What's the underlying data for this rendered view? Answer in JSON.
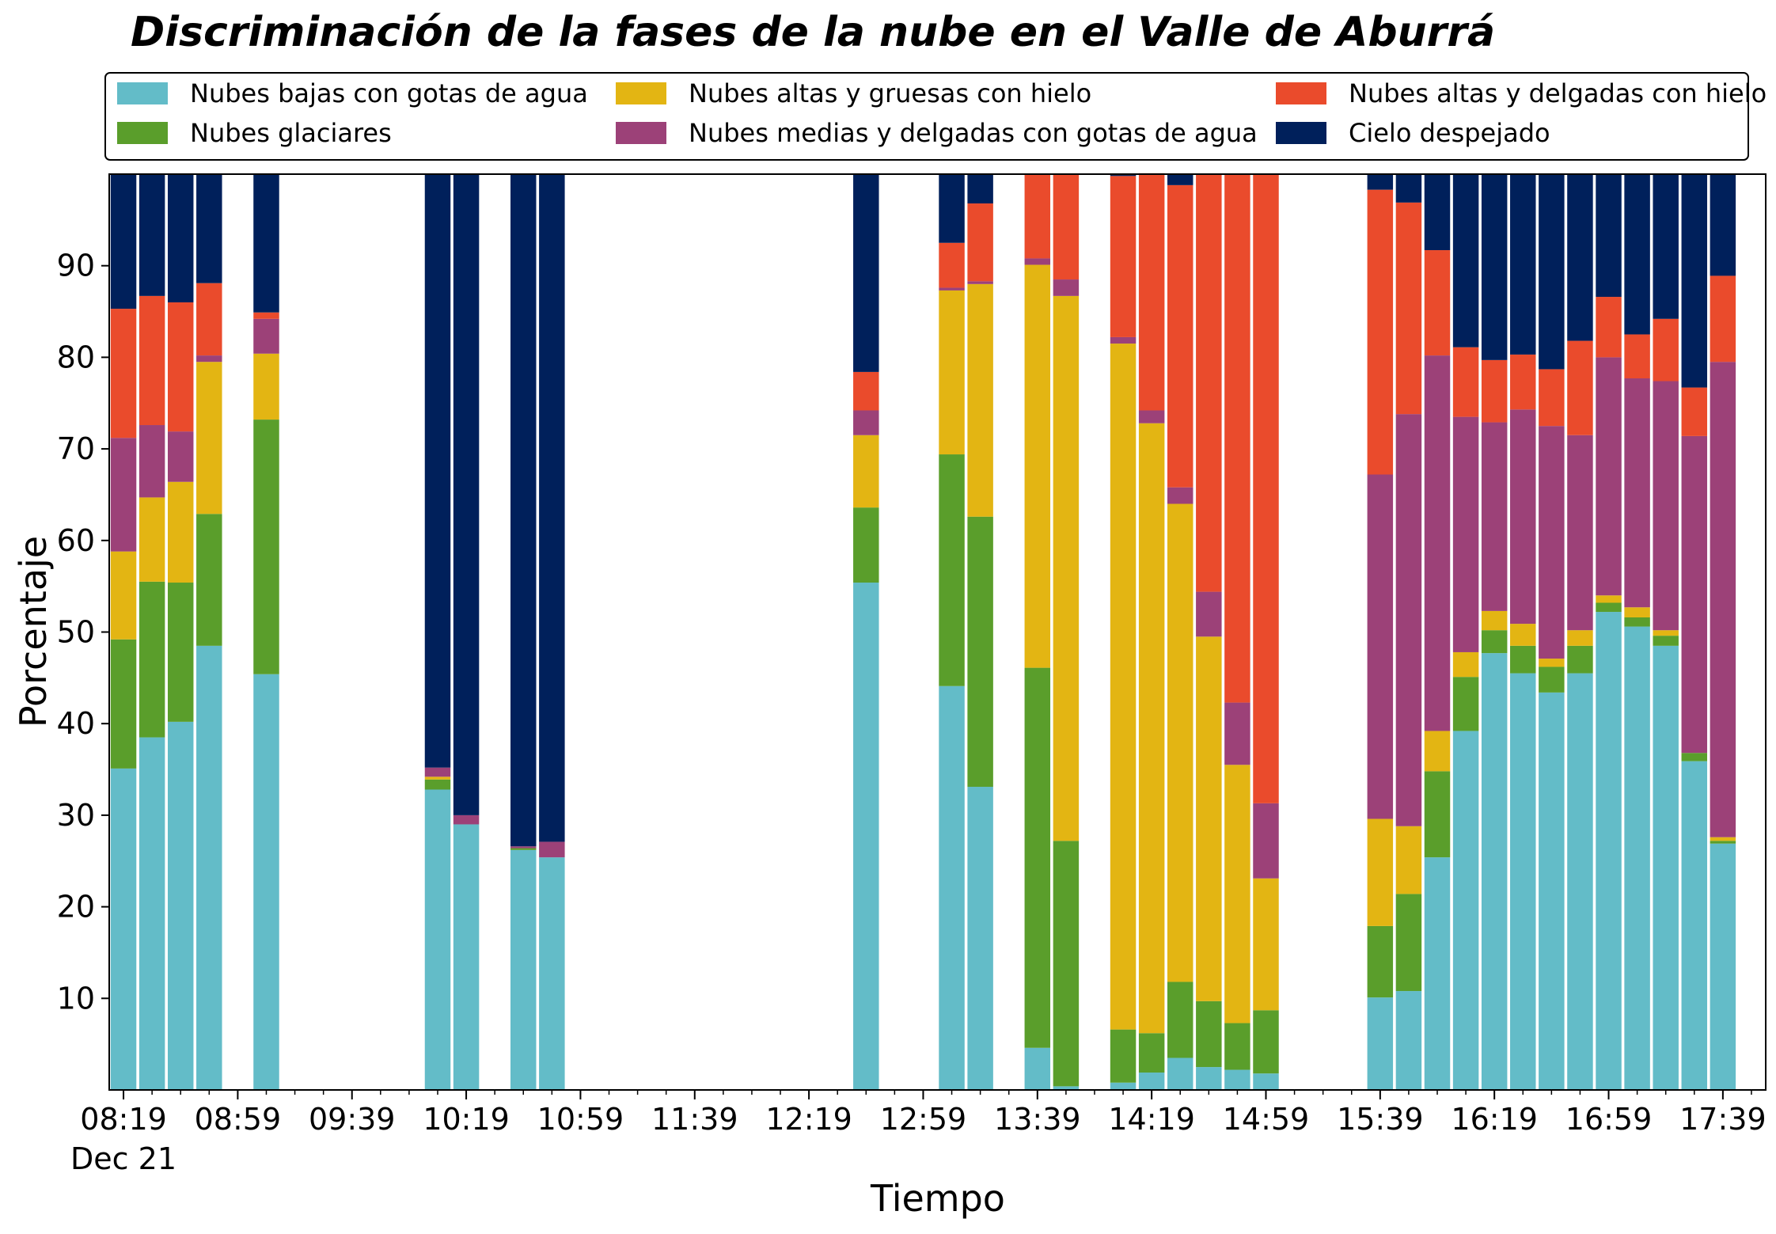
{
  "chart_data": {
    "type": "bar",
    "stacked": true,
    "title": "Discriminación de la fases de la nube en el Valle de Aburrá",
    "xlabel": "Tiempo",
    "ylabel": "Porcentaje",
    "ylim": [
      0,
      100
    ],
    "yticks": [
      10,
      20,
      30,
      40,
      50,
      60,
      70,
      80,
      90
    ],
    "x_start": "08:14",
    "x_end": "17:54",
    "xticks": [
      "08:19",
      "08:59",
      "09:39",
      "10:19",
      "10:59",
      "11:39",
      "12:19",
      "12:59",
      "13:39",
      "14:19",
      "14:59",
      "15:39",
      "16:19",
      "16:59",
      "17:39"
    ],
    "xtick_date": "Dec 21",
    "legend_position": "top",
    "series": [
      {
        "name": "Nubes bajas con gotas de agua",
        "color": "#63bcc8"
      },
      {
        "name": "Nubes glaciares",
        "color": "#5a9e2b"
      },
      {
        "name": "Nubes altas y gruesas con hielo",
        "color": "#e3b513"
      },
      {
        "name": "Nubes medias y delgadas con gotas de agua",
        "color": "#9c4178"
      },
      {
        "name": "Nubes altas y delgadas con hielo",
        "color": "#ea4b2c"
      },
      {
        "name": "Cielo despejado",
        "color": "#00205b"
      }
    ],
    "bars": [
      {
        "time": "08:19",
        "values": [
          35.1,
          14.1,
          9.6,
          12.4,
          14.1,
          14.7
        ]
      },
      {
        "time": "08:29",
        "values": [
          38.5,
          17.0,
          9.2,
          7.9,
          14.1,
          13.3
        ]
      },
      {
        "time": "08:39",
        "values": [
          40.2,
          15.2,
          11.0,
          5.5,
          14.1,
          14.0
        ]
      },
      {
        "time": "08:49",
        "values": [
          48.5,
          14.4,
          16.6,
          0.7,
          7.9,
          11.9
        ]
      },
      {
        "time": "09:09",
        "values": [
          45.4,
          27.8,
          7.2,
          3.8,
          0.7,
          15.1
        ]
      },
      {
        "time": "10:09",
        "values": [
          32.8,
          1.1,
          0.3,
          1.0,
          0.0,
          64.8
        ]
      },
      {
        "time": "10:19",
        "values": [
          29.0,
          0.0,
          0.0,
          1.0,
          0.0,
          70.0
        ]
      },
      {
        "time": "10:39",
        "values": [
          26.2,
          0.2,
          0.0,
          0.2,
          0.0,
          73.4
        ]
      },
      {
        "time": "10:49",
        "values": [
          25.4,
          0.0,
          0.0,
          1.7,
          0.0,
          72.9
        ]
      },
      {
        "time": "12:39",
        "values": [
          55.4,
          8.2,
          7.9,
          2.7,
          4.2,
          21.6
        ]
      },
      {
        "time": "13:09",
        "values": [
          44.1,
          25.3,
          17.9,
          0.3,
          4.9,
          7.5
        ]
      },
      {
        "time": "13:19",
        "values": [
          33.1,
          29.5,
          25.4,
          0.3,
          8.5,
          3.2
        ]
      },
      {
        "time": "13:39",
        "values": [
          4.6,
          41.5,
          44.0,
          0.7,
          9.2,
          0.0
        ]
      },
      {
        "time": "13:49",
        "values": [
          0.4,
          26.8,
          59.5,
          1.8,
          11.5,
          0.0
        ]
      },
      {
        "time": "14:09",
        "values": [
          0.8,
          5.8,
          74.9,
          0.7,
          17.6,
          0.2
        ]
      },
      {
        "time": "14:19",
        "values": [
          1.9,
          4.3,
          66.6,
          1.4,
          25.9,
          0.0
        ]
      },
      {
        "time": "14:29",
        "values": [
          3.5,
          8.3,
          52.2,
          1.8,
          33.0,
          1.2
        ]
      },
      {
        "time": "14:39",
        "values": [
          2.5,
          7.2,
          39.8,
          4.9,
          45.6,
          0.0
        ]
      },
      {
        "time": "14:49",
        "values": [
          2.2,
          5.1,
          28.2,
          6.8,
          57.7,
          0.0
        ]
      },
      {
        "time": "14:59",
        "values": [
          1.8,
          6.9,
          14.4,
          8.2,
          68.7,
          0.0
        ]
      },
      {
        "time": "15:39",
        "values": [
          10.1,
          7.8,
          11.7,
          37.6,
          31.1,
          1.7
        ]
      },
      {
        "time": "15:49",
        "values": [
          10.8,
          10.6,
          7.4,
          45.0,
          23.1,
          3.1
        ]
      },
      {
        "time": "15:59",
        "values": [
          25.4,
          9.4,
          4.4,
          41.0,
          11.5,
          8.3
        ]
      },
      {
        "time": "16:09",
        "values": [
          39.2,
          5.9,
          2.7,
          25.7,
          7.6,
          18.9
        ]
      },
      {
        "time": "16:19",
        "values": [
          47.7,
          2.5,
          2.1,
          20.6,
          6.8,
          20.3
        ]
      },
      {
        "time": "16:29",
        "values": [
          45.5,
          3.0,
          2.4,
          23.4,
          6.0,
          19.7
        ]
      },
      {
        "time": "16:39",
        "values": [
          43.4,
          2.8,
          0.9,
          25.4,
          6.2,
          21.3
        ]
      },
      {
        "time": "16:49",
        "values": [
          45.5,
          3.0,
          1.7,
          21.3,
          10.3,
          18.2
        ]
      },
      {
        "time": "16:59",
        "values": [
          52.2,
          1.0,
          0.8,
          26.0,
          6.6,
          13.4
        ]
      },
      {
        "time": "17:09",
        "values": [
          50.6,
          1.0,
          1.1,
          25.0,
          4.8,
          17.5
        ]
      },
      {
        "time": "17:19",
        "values": [
          48.5,
          1.1,
          0.6,
          27.2,
          6.8,
          15.8
        ]
      },
      {
        "time": "17:29",
        "values": [
          35.9,
          0.9,
          0.0,
          34.6,
          5.3,
          23.3
        ]
      },
      {
        "time": "17:39",
        "values": [
          26.9,
          0.3,
          0.4,
          51.9,
          9.4,
          11.1
        ]
      }
    ]
  }
}
